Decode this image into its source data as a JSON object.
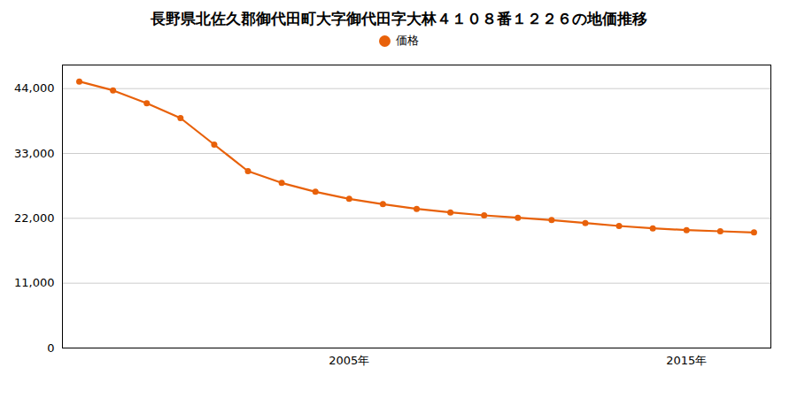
{
  "chart_data": {
    "type": "line",
    "title": "長野県北佐久郡御代田町大字御代田字大林４１０８番１２２６の地価推移",
    "x": [
      1997,
      1998,
      1999,
      2000,
      2001,
      2002,
      2003,
      2004,
      2005,
      2006,
      2007,
      2008,
      2009,
      2010,
      2011,
      2012,
      2013,
      2014,
      2015,
      2016,
      2017
    ],
    "series": [
      {
        "name": "価格",
        "color": "#E8610A",
        "marker": "circle",
        "values": [
          45200,
          43700,
          41500,
          39000,
          34500,
          30000,
          28000,
          26500,
          25300,
          24400,
          23600,
          23000,
          22500,
          22100,
          21700,
          21200,
          20700,
          20300,
          20000,
          19800,
          19600
        ]
      }
    ],
    "xlim": [
      1996.5,
      2017.5
    ],
    "xticks": [
      {
        "value": 2005,
        "label": "2005年"
      },
      {
        "value": 2015,
        "label": "2015年"
      }
    ],
    "ylim": [
      0,
      48000
    ],
    "yticks": [
      0,
      {
        "value": 11000,
        "label": "11,000"
      },
      {
        "value": 22000,
        "label": "22,000"
      },
      {
        "value": 33000,
        "label": "33,000"
      },
      {
        "value": 44000,
        "label": "44,000"
      }
    ],
    "grid": "y",
    "legend": "top"
  }
}
